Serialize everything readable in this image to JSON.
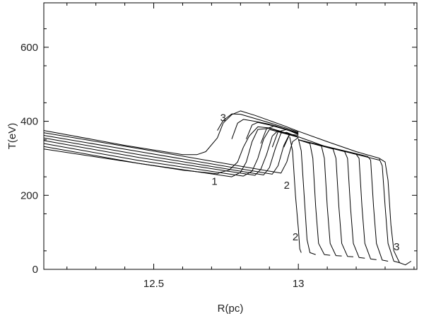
{
  "chart_data": {
    "type": "line",
    "title": "",
    "xlabel": "R(pc)",
    "ylabel": "T(eV)",
    "xlim": [
      12.12,
      13.41
    ],
    "ylim": [
      0,
      720
    ],
    "xticks": [
      12.5,
      13
    ],
    "xtick_labels": [
      "12.5",
      "13"
    ],
    "yticks": [
      0,
      200,
      400,
      600
    ],
    "ytick_labels": [
      "0",
      "200",
      "400",
      "600"
    ],
    "grid": false,
    "legend": "none",
    "line_color": "#000000",
    "annotations": [
      {
        "text": "3",
        "x": 12.74,
        "y": 400
      },
      {
        "text": "1",
        "x": 12.71,
        "y": 228
      },
      {
        "text": "2",
        "x": 12.96,
        "y": 218
      },
      {
        "text": "2",
        "x": 12.99,
        "y": 78
      },
      {
        "text": "3",
        "x": 13.34,
        "y": 52
      }
    ],
    "series": [
      {
        "points": [
          [
            12.12,
            325
          ],
          [
            12.4,
            292
          ],
          [
            12.6,
            268
          ],
          [
            12.72,
            258
          ],
          [
            12.73,
            262
          ],
          [
            12.76,
            268
          ],
          [
            12.79,
            290
          ],
          [
            12.81,
            330
          ],
          [
            12.83,
            360
          ],
          [
            12.86,
            385
          ],
          [
            12.9,
            382
          ],
          [
            13.0,
            358
          ],
          [
            13.1,
            330
          ],
          [
            13.28,
            295
          ]
        ]
      },
      {
        "points": [
          [
            12.12,
            332
          ],
          [
            12.45,
            286
          ],
          [
            12.77,
            250
          ],
          [
            12.8,
            262
          ],
          [
            12.82,
            290
          ],
          [
            12.84,
            345
          ],
          [
            12.86,
            378
          ],
          [
            12.9,
            381
          ],
          [
            13.0,
            357
          ]
        ]
      },
      {
        "points": [
          [
            12.12,
            340
          ],
          [
            12.45,
            294
          ],
          [
            12.81,
            252
          ],
          [
            12.84,
            265
          ],
          [
            12.86,
            300
          ],
          [
            12.88,
            352
          ],
          [
            12.9,
            378
          ],
          [
            13.0,
            357
          ]
        ]
      },
      {
        "points": [
          [
            12.12,
            348
          ],
          [
            12.45,
            302
          ],
          [
            12.85,
            254
          ],
          [
            12.87,
            270
          ],
          [
            12.89,
            310
          ],
          [
            12.91,
            360
          ],
          [
            12.93,
            375
          ],
          [
            13.0,
            357
          ]
        ]
      },
      {
        "points": [
          [
            12.12,
            355
          ],
          [
            12.45,
            310
          ],
          [
            12.88,
            255
          ],
          [
            12.9,
            275
          ],
          [
            12.92,
            325
          ],
          [
            12.94,
            368
          ],
          [
            12.96,
            370
          ],
          [
            13.0,
            357
          ]
        ]
      },
      {
        "points": [
          [
            12.12,
            362
          ],
          [
            12.45,
            318
          ],
          [
            12.91,
            257
          ],
          [
            12.93,
            280
          ],
          [
            12.95,
            335
          ],
          [
            12.97,
            366
          ],
          [
            13.0,
            357
          ]
        ]
      },
      {
        "points": [
          [
            12.12,
            369
          ],
          [
            12.45,
            326
          ],
          [
            12.94,
            260
          ],
          [
            12.96,
            290
          ],
          [
            12.98,
            345
          ],
          [
            13.0,
            356
          ]
        ]
      },
      {
        "points": [
          [
            12.12,
            375
          ],
          [
            12.4,
            335
          ],
          [
            12.6,
            310
          ],
          [
            12.65,
            310
          ],
          [
            12.68,
            318
          ],
          [
            12.72,
            355
          ],
          [
            12.74,
            395
          ],
          [
            12.77,
            418
          ],
          [
            12.8,
            428
          ],
          [
            12.85,
            416
          ],
          [
            12.95,
            388
          ],
          [
            13.0,
            373
          ],
          [
            13.1,
            345
          ],
          [
            13.2,
            318
          ],
          [
            13.28,
            300
          ],
          [
            13.3,
            290
          ],
          [
            13.31,
            240
          ],
          [
            13.32,
            120
          ],
          [
            13.33,
            50
          ],
          [
            13.35,
            18
          ],
          [
            13.37,
            12
          ],
          [
            13.39,
            22
          ]
        ]
      },
      {
        "points": [
          [
            12.72,
            375
          ],
          [
            12.74,
            402
          ],
          [
            12.77,
            420
          ],
          [
            12.8,
            419
          ],
          [
            12.9,
            396
          ],
          [
            13.0,
            371
          ]
        ]
      },
      {
        "points": [
          [
            12.77,
            352
          ],
          [
            12.79,
            395
          ],
          [
            12.81,
            405
          ],
          [
            12.85,
            400
          ],
          [
            12.9,
            392
          ],
          [
            13.0,
            369
          ]
        ]
      },
      {
        "points": [
          [
            12.82,
            352
          ],
          [
            12.84,
            390
          ],
          [
            12.86,
            397
          ],
          [
            12.9,
            390
          ],
          [
            13.0,
            368
          ]
        ]
      },
      {
        "points": [
          [
            12.87,
            340
          ],
          [
            12.89,
            380
          ],
          [
            12.92,
            388
          ],
          [
            13.0,
            366
          ]
        ]
      },
      {
        "points": [
          [
            12.91,
            330
          ],
          [
            12.93,
            372
          ],
          [
            12.96,
            378
          ],
          [
            13.0,
            364
          ]
        ]
      },
      {
        "points": [
          [
            12.95,
            330
          ],
          [
            12.97,
            365
          ],
          [
            13.0,
            362
          ]
        ]
      },
      {
        "points": [
          [
            12.97,
            358
          ],
          [
            12.98,
            320
          ],
          [
            12.99,
            200
          ],
          [
            13.0,
            110
          ],
          [
            13.005,
            55
          ],
          [
            13.01,
            45
          ]
        ]
      },
      {
        "points": [
          [
            13.0,
            353
          ],
          [
            13.01,
            320
          ],
          [
            13.02,
            200
          ],
          [
            13.03,
            80
          ],
          [
            13.04,
            45
          ],
          [
            13.06,
            40
          ]
        ]
      },
      {
        "points": [
          [
            13.0,
            350
          ],
          [
            13.04,
            340
          ],
          [
            13.05,
            300
          ],
          [
            13.06,
            170
          ],
          [
            13.07,
            70
          ],
          [
            13.09,
            40
          ],
          [
            13.11,
            38
          ]
        ]
      },
      {
        "points": [
          [
            13.0,
            350
          ],
          [
            13.08,
            333
          ],
          [
            13.09,
            300
          ],
          [
            13.1,
            170
          ],
          [
            13.11,
            70
          ],
          [
            13.13,
            37
          ],
          [
            13.15,
            36
          ]
        ]
      },
      {
        "points": [
          [
            13.0,
            350
          ],
          [
            13.12,
            325
          ],
          [
            13.13,
            300
          ],
          [
            13.14,
            170
          ],
          [
            13.15,
            70
          ],
          [
            13.17,
            35
          ],
          [
            13.19,
            34
          ]
        ]
      },
      {
        "points": [
          [
            13.0,
            350
          ],
          [
            13.16,
            318
          ],
          [
            13.17,
            300
          ],
          [
            13.18,
            170
          ],
          [
            13.19,
            70
          ],
          [
            13.21,
            32
          ],
          [
            13.23,
            30
          ]
        ]
      },
      {
        "points": [
          [
            13.0,
            350
          ],
          [
            13.2,
            311
          ],
          [
            13.21,
            300
          ],
          [
            13.22,
            170
          ],
          [
            13.23,
            70
          ],
          [
            13.25,
            28
          ],
          [
            13.27,
            26
          ]
        ]
      },
      {
        "points": [
          [
            13.0,
            350
          ],
          [
            13.24,
            305
          ],
          [
            13.25,
            295
          ],
          [
            13.26,
            170
          ],
          [
            13.27,
            70
          ],
          [
            13.29,
            25
          ],
          [
            13.31,
            22
          ]
        ]
      },
      {
        "points": [
          [
            13.28,
            298
          ],
          [
            13.29,
            280
          ],
          [
            13.3,
            170
          ],
          [
            13.31,
            70
          ],
          [
            13.33,
            22
          ],
          [
            13.35,
            18
          ]
        ]
      }
    ]
  }
}
